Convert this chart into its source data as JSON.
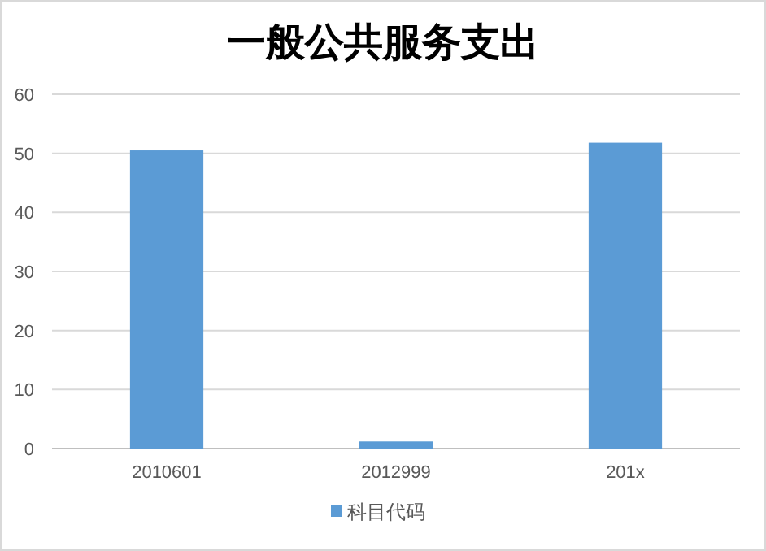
{
  "chart_data": {
    "type": "bar",
    "title": "一般公共服务支出",
    "categories": [
      "2010601",
      "2012999",
      "201x"
    ],
    "series": [
      {
        "name": "科目代码",
        "color": "#5b9bd5",
        "values": [
          50.5,
          1.2,
          51.8
        ]
      }
    ],
    "ylim": [
      0,
      60
    ],
    "yticks": [
      0,
      10,
      20,
      30,
      40,
      50,
      60
    ],
    "grid": "y",
    "legend": "bottom"
  }
}
